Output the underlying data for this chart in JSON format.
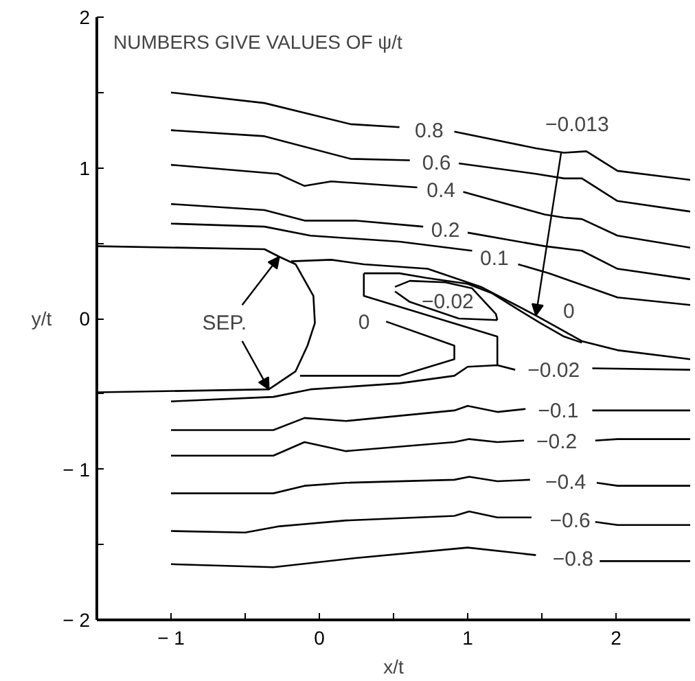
{
  "chart_data": {
    "type": "line",
    "title": "NUMBERS GIVE VALUES OF ψ/t",
    "xlabel": "x/t",
    "ylabel": "y/t",
    "xlim": [
      -1.5,
      2.5
    ],
    "ylim": [
      -2,
      2
    ],
    "xticks": [
      {
        "value": -1.5,
        "label": null
      },
      -1,
      {
        "value": -0.5,
        "label": null
      },
      0,
      {
        "value": 0.5,
        "label": null
      },
      1,
      {
        "value": 1.5,
        "label": null
      },
      2
    ],
    "yticks": [
      -2,
      {
        "value": -1.5,
        "label": null
      },
      -1,
      {
        "value": -0.5,
        "label": null
      },
      0,
      {
        "value": 0.5,
        "label": null
      },
      1,
      {
        "value": 1.5,
        "label": null
      },
      2
    ],
    "series": [
      {
        "color": "#000000",
        "x": [
          -1.5,
          -0.37,
          -0.27,
          -0.16,
          -0.04,
          -0.03,
          -0.08,
          -0.16,
          -0.34,
          -1.5
        ],
        "values": [
          0.48,
          0.46,
          0.41,
          0.36,
          0.15,
          -0.03,
          -0.18,
          -0.35,
          -0.47,
          -0.49
        ]
      },
      {
        "name": "0.8",
        "color": "#000000",
        "x": [
          -1.0,
          -0.37,
          0.21,
          0.54,
          0.74,
          0.91,
          1.46,
          1.65,
          1.8,
          2.01,
          2.5
        ],
        "values": [
          1.5,
          1.43,
          1.29,
          1.27,
          null,
          1.24,
          1.13,
          1.1,
          1.11,
          0.98,
          0.92
        ]
      },
      {
        "name": "0.6",
        "color": "#000000",
        "x": [
          -1.0,
          -0.37,
          0.21,
          0.61,
          0.79,
          0.94,
          1.46,
          1.65,
          1.77,
          2.01,
          2.5
        ],
        "values": [
          1.25,
          1.21,
          1.06,
          1.05,
          null,
          1.03,
          0.96,
          0.93,
          0.93,
          0.78,
          0.71
        ]
      },
      {
        "name": "0.4",
        "color": "#000000",
        "x": [
          -1.0,
          -0.28,
          -0.1,
          0.08,
          0.66,
          0.82,
          0.97,
          1.52,
          1.65,
          1.77,
          2.01,
          2.5
        ],
        "values": [
          1.02,
          0.96,
          0.88,
          0.91,
          0.87,
          null,
          0.84,
          0.69,
          0.67,
          0.66,
          0.55,
          0.47
        ]
      },
      {
        "name": "0.2",
        "color": "#000000",
        "x": [
          -1.0,
          -0.37,
          -0.1,
          0.24,
          0.7,
          0.85,
          1.0,
          1.52,
          1.77,
          2.01,
          2.5
        ],
        "values": [
          0.76,
          0.72,
          0.65,
          0.65,
          0.61,
          null,
          0.57,
          0.48,
          0.45,
          0.33,
          0.26
        ]
      },
      {
        "name": "0.1",
        "color": "#000000",
        "x": [
          -1.0,
          -0.37,
          -0.06,
          0.54,
          1.03,
          1.18,
          1.34,
          1.55,
          2.01,
          2.5
        ],
        "values": [
          0.63,
          0.61,
          0.55,
          0.51,
          0.45,
          null,
          0.36,
          0.3,
          0.14,
          0.09
        ]
      },
      {
        "name": "0",
        "color": "#000000",
        "x": [
          -0.19,
          0.08,
          0.3,
          0.73,
          1.09,
          1.46,
          1.77,
          2.01,
          2.5
        ],
        "values": [
          0.38,
          0.39,
          0.36,
          0.33,
          0.21,
          0.02,
          -0.15,
          -0.21,
          -0.27
        ]
      },
      {
        "name": "0",
        "color": "#000000",
        "x": [
          -0.13,
          0.54,
          0.91,
          0.91,
          0.45
        ],
        "values": [
          -0.38,
          -0.38,
          -0.27,
          -0.18,
          -0.02
        ]
      },
      {
        "name": "−0.02",
        "color": "#000000",
        "x": [
          0.51,
          0.61,
          0.85,
          1.03,
          1.19,
          1.2
        ],
        "values": [
          0.21,
          0.25,
          0.24,
          0.2,
          0.03,
          -0.01
        ]
      },
      {
        "color": "#000000",
        "x": [
          0.51,
          0.61,
          0.94,
          1.2
        ],
        "values": [
          0.18,
          0.11,
          0.0,
          -0.01
        ]
      },
      {
        "name": "−0.02",
        "color": "#000000",
        "x": [
          -1.0,
          -0.31,
          -0.06,
          0.54,
          0.91,
          1.0,
          1.2,
          1.32,
          1.58,
          1.84,
          2.5
        ],
        "values": [
          -0.55,
          -0.52,
          -0.47,
          -0.43,
          -0.38,
          -0.32,
          -0.31,
          -0.34,
          null,
          -0.33,
          -0.34
        ]
      },
      {
        "color": "#000000",
        "x": [
          0.3,
          0.3,
          1.2,
          1.2
        ],
        "values": [
          0.3,
          0.15,
          -0.12,
          -0.31
        ]
      },
      {
        "color": "#000000",
        "x": [
          0.3,
          0.54,
          0.72,
          1.0,
          1.16,
          1.34,
          1.49,
          1.65,
          1.77
        ],
        "values": [
          0.3,
          0.3,
          0.27,
          0.23,
          0.17,
          0.06,
          -0.03,
          -0.12,
          -0.16
        ]
      },
      {
        "name": "−0.1",
        "color": "#000000",
        "x": [
          -1.0,
          -0.31,
          -0.1,
          0.18,
          0.91,
          1.0,
          1.2,
          1.39,
          1.61,
          1.84,
          2.5
        ],
        "values": [
          -0.74,
          -0.74,
          -0.66,
          -0.68,
          -0.61,
          -0.58,
          -0.62,
          -0.6,
          null,
          -0.61,
          -0.61
        ]
      },
      {
        "name": "−0.2",
        "color": "#000000",
        "x": [
          -1.0,
          -0.31,
          -0.1,
          0.18,
          0.91,
          1.01,
          1.2,
          1.38,
          1.6,
          1.86,
          2.01,
          2.5
        ],
        "values": [
          -0.91,
          -0.91,
          -0.82,
          -0.88,
          -0.82,
          -0.8,
          -0.82,
          -0.81,
          null,
          -0.81,
          -0.8,
          -0.8
        ]
      },
      {
        "name": "−0.4",
        "color": "#000000",
        "x": [
          -1.0,
          -0.31,
          -0.1,
          0.18,
          0.91,
          1.01,
          1.2,
          1.42,
          1.66,
          1.87,
          2.01,
          2.5
        ],
        "values": [
          -1.16,
          -1.16,
          -1.11,
          -1.09,
          -1.07,
          -1.05,
          -1.08,
          -1.07,
          null,
          -1.09,
          -1.11,
          -1.11
        ]
      },
      {
        "name": "−0.6",
        "color": "#000000",
        "x": [
          -1.0,
          -0.5,
          -0.28,
          0.18,
          0.91,
          1.01,
          1.2,
          1.43,
          1.69,
          1.86,
          2.01,
          2.5
        ],
        "values": [
          -1.41,
          -1.42,
          -1.38,
          -1.34,
          -1.31,
          -1.28,
          -1.32,
          -1.32,
          null,
          -1.35,
          -1.37,
          -1.37
        ]
      },
      {
        "name": "−0.8",
        "color": "#000000",
        "x": [
          -1.0,
          -0.31,
          0.24,
          1.0,
          1.46,
          1.71,
          1.89,
          2.5
        ],
        "values": [
          -1.63,
          -1.65,
          -1.59,
          -1.52,
          -1.57,
          null,
          -1.61,
          -1.61
        ]
      }
    ],
    "annotations": [
      {
        "text": "SEP.",
        "x": -0.27,
        "y": 0.41
      },
      {
        "text": "−0.013",
        "x": 1.46,
        "y": 0.02
      }
    ]
  }
}
